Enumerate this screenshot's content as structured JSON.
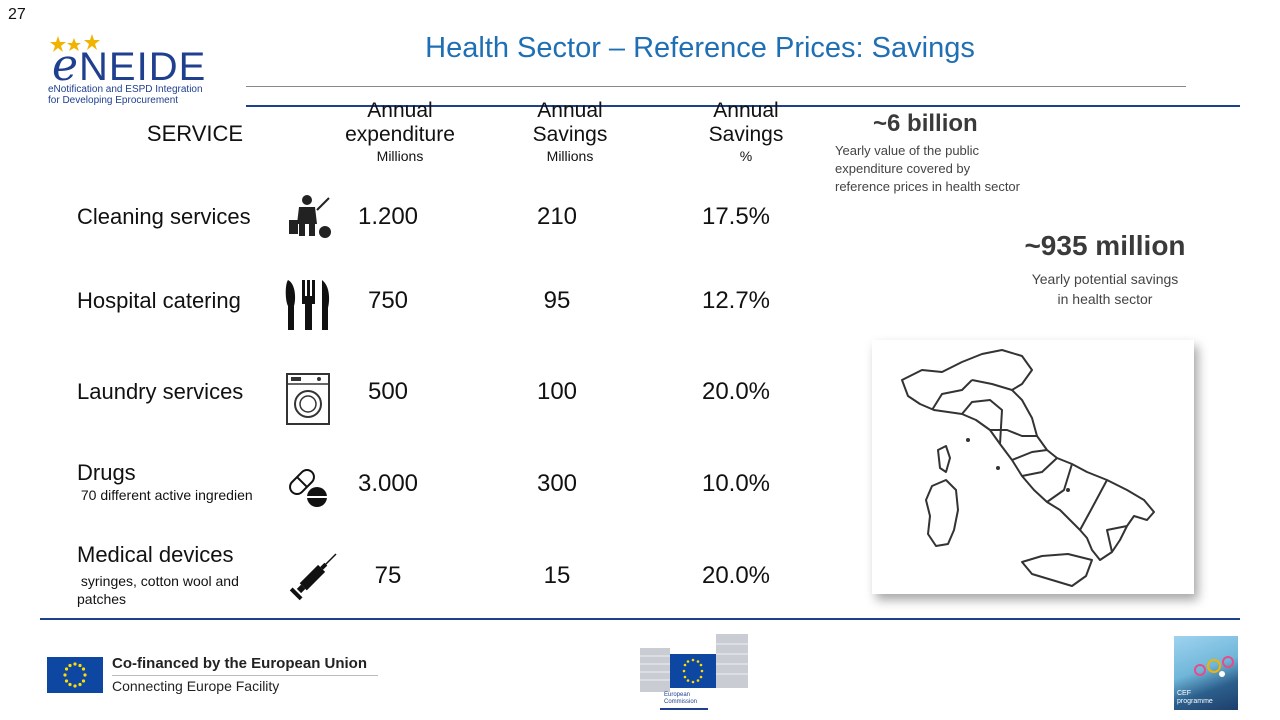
{
  "slide_number": "27",
  "logo": {
    "name_e": "e",
    "name_rest": "NEIDE",
    "subtitle_line1": "eNotification and ESPD Integration",
    "subtitle_line2": "for   Developing    Eprocurement"
  },
  "title": "Health Sector – Reference Prices: Savings",
  "table": {
    "header_service": "SERVICE",
    "header_expenditure": [
      "Annual",
      "expenditure"
    ],
    "header_expenditure_unit": "Millions",
    "header_savings": [
      "Annual",
      "Savings"
    ],
    "header_savings_unit": "Millions",
    "header_savings_pct": [
      "Annual",
      "Savings"
    ],
    "header_savings_pct_unit": "%",
    "rows": [
      {
        "label": "Cleaning services",
        "sub": "",
        "icon": "cleaning-worker-icon",
        "expenditure": "1.200",
        "savings": "210",
        "pct": "17.5%"
      },
      {
        "label": "Hospital catering",
        "sub": "",
        "icon": "cutlery-icon",
        "expenditure": "750",
        "savings": "95",
        "pct": "12.7%"
      },
      {
        "label": "Laundry services",
        "sub": "",
        "icon": "washing-machine-icon",
        "expenditure": "500",
        "savings": "100",
        "pct": "20.0%"
      },
      {
        "label": "Drugs",
        "sub": " 70 different active ingredien",
        "icon": "pills-icon",
        "expenditure": "3.000",
        "savings": "300",
        "pct": "10.0%"
      },
      {
        "label": "Medical devices",
        "sub": " syringes, cotton wool and",
        "sub2": "patches",
        "icon": "syringe-icon",
        "expenditure": "75",
        "savings": "15",
        "pct": "20.0%"
      }
    ]
  },
  "stats": {
    "billion_value": "~6 billion",
    "billion_desc": [
      "Yearly value of the public",
      "expenditure covered by",
      "reference prices in health sector"
    ],
    "million_value": "~935 million",
    "million_desc": [
      "Yearly potential savings",
      "in health sector"
    ]
  },
  "footer": {
    "cofinanced": "Co-financed by the European Union",
    "facility": "Connecting Europe Facility",
    "ec_label": [
      "European",
      "Commission"
    ],
    "cef_label": [
      "CEF",
      "programme"
    ]
  },
  "colors": {
    "title_blue": "#1f6fb4",
    "line_navy": "#1f3f8f",
    "eu_blue": "#0e47a1",
    "eu_yellow": "#ffdd00"
  }
}
